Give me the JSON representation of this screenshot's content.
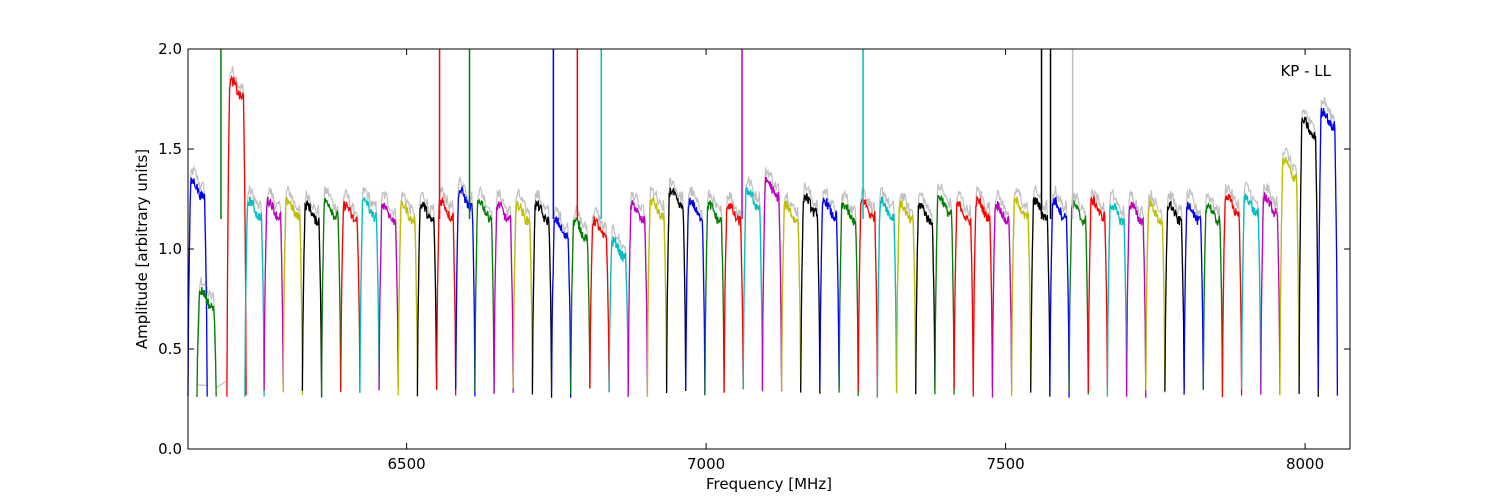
{
  "chart_data": {
    "type": "line",
    "xlabel": "Frequency [MHz]",
    "ylabel": "Amplitude [arbitrary units]",
    "annotation": "KP - LL",
    "xlim": [
      6135,
      8075
    ],
    "ylim": [
      0.0,
      2.0
    ],
    "xticks": [
      6500,
      7000,
      7500,
      8000
    ],
    "yticks": [
      0.0,
      0.5,
      1.0,
      1.5,
      2.0
    ],
    "xtick_labels": [
      "6500",
      "7000",
      "7500",
      "8000"
    ],
    "ytick_labels": [
      "0.0",
      "0.5",
      "1.0",
      "1.5",
      "2.0"
    ],
    "channel_width_mhz": 32,
    "band_start_mhz": 6150,
    "colors": [
      "#0000ff",
      "#008000",
      "#ff0000",
      "#00bfbf",
      "#bf00bf",
      "#bfbf00",
      "#000000"
    ],
    "background_trace_color": "#c0c0c0",
    "channels": [
      {
        "start": 6135,
        "level": 1.3,
        "color": "#0000ff"
      },
      {
        "start": 6150,
        "level": 0.75,
        "color": "#008000"
      },
      {
        "start": 6200,
        "level": 1.8,
        "color": "#ff0000"
      },
      {
        "start": 6230,
        "level": 1.2,
        "color": "#00bfbf"
      },
      {
        "start": 6262,
        "level": 1.2,
        "color": "#bf00bf"
      },
      {
        "start": 6294,
        "level": 1.2,
        "color": "#bfbf00"
      },
      {
        "start": 6326,
        "level": 1.18,
        "color": "#000000"
      },
      {
        "start": 6358,
        "level": 1.2,
        "color": "#008000"
      },
      {
        "start": 6390,
        "level": 1.18,
        "color": "#ff0000"
      },
      {
        "start": 6422,
        "level": 1.2,
        "color": "#00bfbf"
      },
      {
        "start": 6454,
        "level": 1.18,
        "color": "#bf00bf"
      },
      {
        "start": 6486,
        "level": 1.18,
        "color": "#bfbf00"
      },
      {
        "start": 6518,
        "level": 1.18,
        "color": "#000000"
      },
      {
        "start": 6550,
        "level": 1.2,
        "color": "#ff0000"
      },
      {
        "start": 6582,
        "level": 1.25,
        "color": "#0000ff"
      },
      {
        "start": 6614,
        "level": 1.2,
        "color": "#008000"
      },
      {
        "start": 6646,
        "level": 1.18,
        "color": "#bf00bf"
      },
      {
        "start": 6678,
        "level": 1.18,
        "color": "#bfbf00"
      },
      {
        "start": 6710,
        "level": 1.18,
        "color": "#000000"
      },
      {
        "start": 6742,
        "level": 1.1,
        "color": "#0000ff"
      },
      {
        "start": 6774,
        "level": 1.1,
        "color": "#008000"
      },
      {
        "start": 6806,
        "level": 1.1,
        "color": "#ff0000"
      },
      {
        "start": 6838,
        "level": 1.0,
        "color": "#00bfbf"
      },
      {
        "start": 6870,
        "level": 1.18,
        "color": "#bf00bf"
      },
      {
        "start": 6902,
        "level": 1.2,
        "color": "#bfbf00"
      },
      {
        "start": 6934,
        "level": 1.25,
        "color": "#000000"
      },
      {
        "start": 6966,
        "level": 1.2,
        "color": "#0000ff"
      },
      {
        "start": 6998,
        "level": 1.18,
        "color": "#008000"
      },
      {
        "start": 7030,
        "level": 1.18,
        "color": "#ff0000"
      },
      {
        "start": 7062,
        "level": 1.25,
        "color": "#00bfbf"
      },
      {
        "start": 7094,
        "level": 1.3,
        "color": "#bf00bf"
      },
      {
        "start": 7126,
        "level": 1.18,
        "color": "#bfbf00"
      },
      {
        "start": 7158,
        "level": 1.22,
        "color": "#000000"
      },
      {
        "start": 7190,
        "level": 1.2,
        "color": "#0000ff"
      },
      {
        "start": 7222,
        "level": 1.18,
        "color": "#008000"
      },
      {
        "start": 7254,
        "level": 1.2,
        "color": "#ff0000"
      },
      {
        "start": 7286,
        "level": 1.2,
        "color": "#00bfbf"
      },
      {
        "start": 7318,
        "level": 1.18,
        "color": "#bfbf00"
      },
      {
        "start": 7350,
        "level": 1.18,
        "color": "#000000"
      },
      {
        "start": 7382,
        "level": 1.22,
        "color": "#008000"
      },
      {
        "start": 7414,
        "level": 1.18,
        "color": "#ff0000"
      },
      {
        "start": 7446,
        "level": 1.2,
        "color": "#ff0000"
      },
      {
        "start": 7478,
        "level": 1.18,
        "color": "#bf00bf"
      },
      {
        "start": 7510,
        "level": 1.2,
        "color": "#bfbf00"
      },
      {
        "start": 7542,
        "level": 1.2,
        "color": "#000000"
      },
      {
        "start": 7574,
        "level": 1.2,
        "color": "#0000ff"
      },
      {
        "start": 7606,
        "level": 1.18,
        "color": "#008000"
      },
      {
        "start": 7638,
        "level": 1.2,
        "color": "#ff0000"
      },
      {
        "start": 7670,
        "level": 1.18,
        "color": "#00bfbf"
      },
      {
        "start": 7702,
        "level": 1.18,
        "color": "#bf00bf"
      },
      {
        "start": 7734,
        "level": 1.18,
        "color": "#bfbf00"
      },
      {
        "start": 7766,
        "level": 1.18,
        "color": "#000000"
      },
      {
        "start": 7798,
        "level": 1.18,
        "color": "#0000ff"
      },
      {
        "start": 7830,
        "level": 1.18,
        "color": "#008000"
      },
      {
        "start": 7862,
        "level": 1.22,
        "color": "#ff0000"
      },
      {
        "start": 7894,
        "level": 1.22,
        "color": "#00bfbf"
      },
      {
        "start": 7926,
        "level": 1.22,
        "color": "#bf00bf"
      },
      {
        "start": 7958,
        "level": 1.4,
        "color": "#bfbf00"
      },
      {
        "start": 7990,
        "level": 1.6,
        "color": "#000000"
      },
      {
        "start": 8022,
        "level": 1.65,
        "color": "#0000ff"
      }
    ],
    "spikes": [
      {
        "x": 6190,
        "y": 2.0,
        "color": "#008000"
      },
      {
        "x": 6555,
        "y": 2.0,
        "color": "#ff0000"
      },
      {
        "x": 6605,
        "y": 2.0,
        "color": "#008000"
      },
      {
        "x": 6745,
        "y": 2.0,
        "color": "#0000ff"
      },
      {
        "x": 6785,
        "y": 2.0,
        "color": "#ff0000"
      },
      {
        "x": 6825,
        "y": 2.0,
        "color": "#00bfbf"
      },
      {
        "x": 7060,
        "y": 2.0,
        "color": "#bf00bf"
      },
      {
        "x": 7262,
        "y": 2.0,
        "color": "#00bfbf"
      },
      {
        "x": 7560,
        "y": 2.0,
        "color": "#000000"
      },
      {
        "x": 7575,
        "y": 2.0,
        "color": "#000000"
      },
      {
        "x": 7612,
        "y": 2.0,
        "color": "#c0c0c0"
      }
    ]
  }
}
